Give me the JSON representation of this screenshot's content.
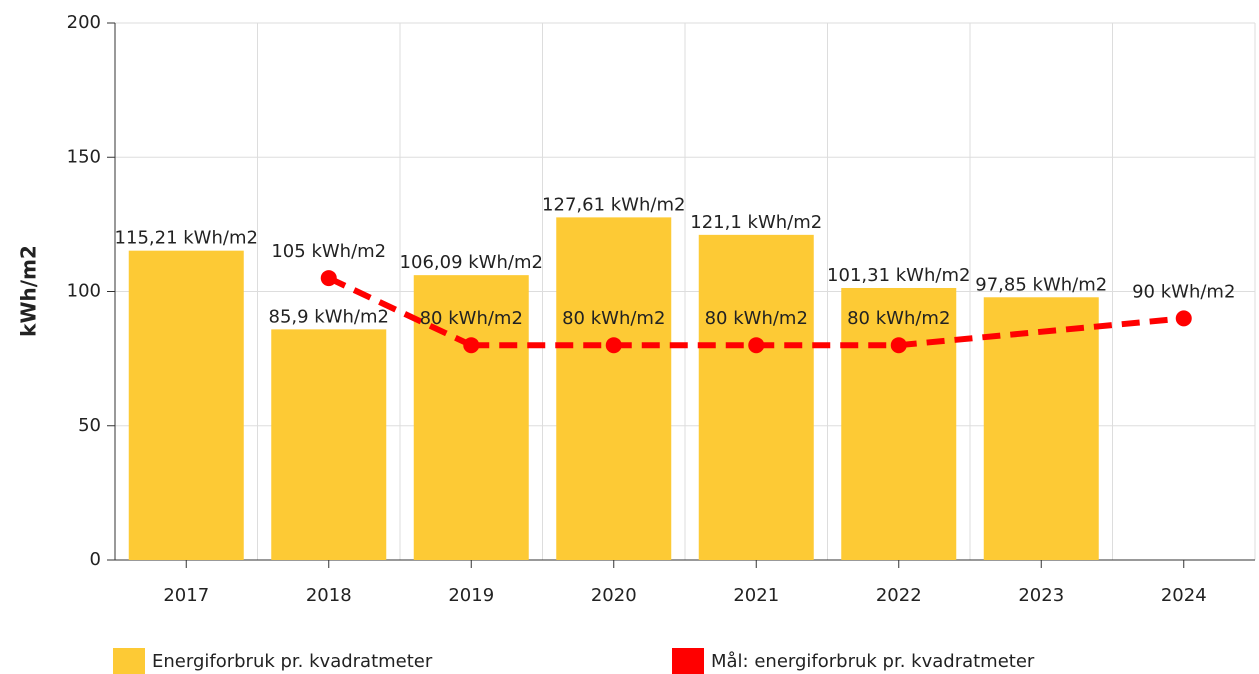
{
  "chart_data": {
    "type": "bar_line",
    "y_label": "kWh/m2",
    "categories": [
      "2017",
      "2018",
      "2019",
      "2020",
      "2021",
      "2022",
      "2023",
      "2024"
    ],
    "series": [
      {
        "name": "Energiforbruk pr. kvadratmeter",
        "type": "bar",
        "color": "#fdca35",
        "values": [
          115.21,
          85.9,
          106.09,
          127.61,
          121.1,
          101.31,
          97.85,
          null
        ],
        "value_labels": [
          "115,21 kWh/m2",
          "85,9 kWh/m2",
          "106,09 kWh/m2",
          "127,61 kWh/m2",
          "121,1 kWh/m2",
          "101,31 kWh/m2",
          "97,85 kWh/m2",
          null
        ]
      },
      {
        "name": "Mål: energiforbruk pr. kvadratmeter",
        "type": "line",
        "color": "#ff0000",
        "values": [
          null,
          105,
          80,
          80,
          80,
          80,
          null,
          90
        ],
        "value_labels": [
          null,
          "105 kWh/m2",
          "80 kWh/m2",
          "80 kWh/m2",
          "80 kWh/m2",
          "80 kWh/m2",
          null,
          "90 kWh/m2"
        ]
      }
    ],
    "ylim": [
      0,
      200
    ],
    "yticks": [
      0,
      50,
      100,
      150,
      200
    ],
    "grid": true
  }
}
